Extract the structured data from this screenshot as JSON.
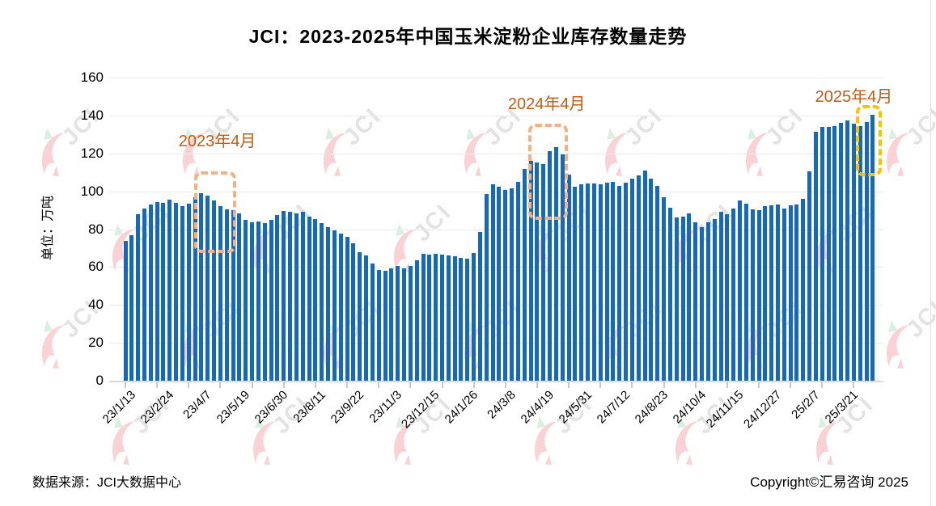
{
  "title": "JCI：2023-2025年中国玉米淀粉企业库存数量走势",
  "footer": {
    "source": "数据来源：JCI大数据中心",
    "copyright": "Copyright©汇易咨询 2025"
  },
  "watermark": {
    "text": "JCI"
  },
  "colors": {
    "bar": "#1569BD",
    "grid": "#EAEAEA",
    "axis": "#D9D9D9",
    "tick": "#C9C9C9",
    "annotation_text": "#C55A11",
    "annotation_box_orange": "#F4B183",
    "annotation_box_gold": "#FFC000",
    "watermark_gray": "#C9C9C9",
    "watermark_pink": "#F2909B",
    "watermark_green": "#AEDCBE",
    "edge_line": "#E0E0E0"
  },
  "chart_data": {
    "type": "bar",
    "title": "JCI：2023-2025年中国玉米淀粉企业库存数量走势",
    "xlabel": "",
    "ylabel": "单位：万吨",
    "ylim": [
      0,
      160
    ],
    "ytick_interval": 20,
    "grid": true,
    "legend": "none",
    "x_labels": [
      "23/1/13",
      "23/2/24",
      "23/4/7",
      "23/5/19",
      "23/6/30",
      "23/8/11",
      "23/9/22",
      "23/11/3",
      "23/12/15",
      "24/1/26",
      "24/3/8",
      "24/4/19",
      "24/5/31",
      "24/7/12",
      "24/8/23",
      "24/10/4",
      "24/11/15",
      "24/12/27",
      "25/2/7",
      "25/3/21"
    ],
    "label_interval": 6,
    "tick_interval": 5,
    "values": [
      74,
      77,
      88,
      91,
      93,
      94.5,
      94,
      95.5,
      94,
      92,
      93.5,
      97,
      99,
      97.5,
      95,
      92,
      90.5,
      90,
      88.5,
      85,
      83.5,
      84,
      83,
      85,
      87.5,
      89.5,
      89,
      88.5,
      89,
      86.5,
      85.5,
      83,
      81,
      79.5,
      77.5,
      76,
      72.5,
      68,
      66,
      62,
      58.5,
      58,
      59.5,
      60.5,
      59.5,
      60.5,
      63.5,
      67,
      66.5,
      67,
      66.5,
      66,
      65.5,
      65,
      64.5,
      67.5,
      78.5,
      98.5,
      103.5,
      102.5,
      100.5,
      101.5,
      105,
      112,
      116,
      115,
      114.5,
      121,
      123.5,
      119.5,
      109,
      102.5,
      103.5,
      104,
      104,
      103.5,
      104.5,
      105,
      103,
      104.5,
      106.5,
      108.5,
      111,
      106.5,
      103,
      97,
      91.5,
      86,
      86.5,
      88.5,
      83.5,
      81,
      83.5,
      85.5,
      89,
      88,
      91,
      95,
      93.5,
      90.5,
      90,
      92,
      92.5,
      93,
      91,
      92.5,
      93,
      96,
      110.5,
      131.5,
      134,
      134,
      134.5,
      136,
      137.5,
      135.5,
      134.5,
      136.5,
      140.5
    ],
    "annotations": [
      {
        "label": "2023年4月",
        "text_color": "#C55A11",
        "box_color": "#F4B183",
        "box": {
          "i_from": 10.9,
          "i_to": 16.5,
          "v_top": 110.5,
          "v_bottom": 71
        },
        "text": {
          "i_center": 14.5,
          "v_top": 133.5
        }
      },
      {
        "label": "2024年4月",
        "text_color": "#C55A11",
        "box_color": "#F4B183",
        "box": {
          "i_from": 63.6,
          "i_to": 68.9,
          "v_top": 135.5,
          "v_bottom": 88.5
        },
        "text": {
          "i_center": 66.5,
          "v_top": 153
        }
      },
      {
        "label": "2025年4月",
        "text_color": "#C55A11",
        "box_color": "#FFC000",
        "box": {
          "i_from": 115.3,
          "i_to": 118.4,
          "v_top": 145.5,
          "v_bottom": 111.5
        },
        "text": {
          "i_center": 115,
          "v_top": 157
        }
      }
    ]
  }
}
